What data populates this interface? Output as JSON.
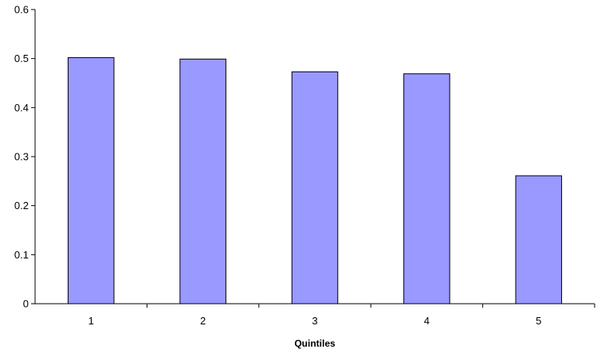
{
  "chart_data": {
    "type": "bar",
    "title": "",
    "xlabel": "Quintiles",
    "ylabel": "",
    "categories": [
      "1",
      "2",
      "3",
      "4",
      "5"
    ],
    "values": [
      0.502,
      0.499,
      0.473,
      0.469,
      0.261
    ],
    "ylim": [
      0,
      0.6
    ],
    "yticks": [
      "0",
      "0.1",
      "0.2",
      "0.3",
      "0.4",
      "0.5",
      "0.6"
    ],
    "grid": false,
    "legend": "none",
    "bar_color": "#9999ff",
    "bar_stroke": "#000000"
  }
}
